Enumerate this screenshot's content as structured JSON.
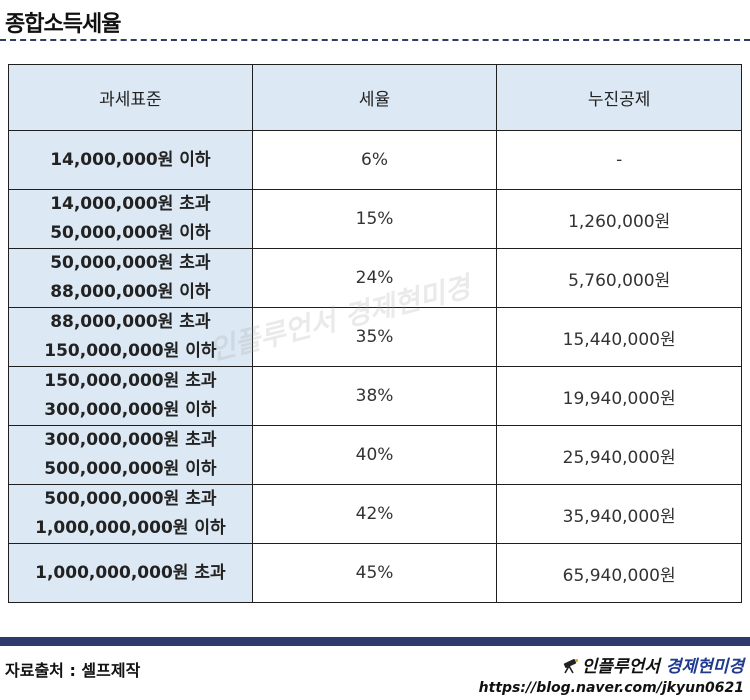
{
  "title": "종합소득세율",
  "table": {
    "headers": [
      "과세표준",
      "세율",
      "누진공제"
    ],
    "rows": [
      {
        "bracket_line1": "14,000,000원 이하",
        "bracket_line2": "",
        "rate": "6%",
        "deduction": "-"
      },
      {
        "bracket_line1": "14,000,000원 초과",
        "bracket_line2": "50,000,000원 이하",
        "rate": "15%",
        "deduction": "1,260,000원"
      },
      {
        "bracket_line1": "50,000,000원 초과",
        "bracket_line2": "88,000,000원 이하",
        "rate": "24%",
        "deduction": "5,760,000원"
      },
      {
        "bracket_line1": "88,000,000원 초과",
        "bracket_line2": "150,000,000원 이하",
        "rate": "35%",
        "deduction": "15,440,000원"
      },
      {
        "bracket_line1": "150,000,000원 초과",
        "bracket_line2": "300,000,000원 이하",
        "rate": "38%",
        "deduction": "19,940,000원"
      },
      {
        "bracket_line1": "300,000,000원 초과",
        "bracket_line2": "500,000,000원 이하",
        "rate": "40%",
        "deduction": "25,940,000원"
      },
      {
        "bracket_line1": "500,000,000원 초과",
        "bracket_line2": "1,000,000,000원 이하",
        "rate": "42%",
        "deduction": "35,940,000원"
      },
      {
        "bracket_line1": "1,000,000,000원 초과",
        "bracket_line2": "",
        "rate": "45%",
        "deduction": "65,940,000원"
      }
    ]
  },
  "watermark": "인플루언서 경제현미경",
  "footer": {
    "source": "자료출처 : 셀프제작",
    "brand_prefix": "인플루언서",
    "brand_name": "경제현미경",
    "url": "https://blog.naver.com/jkyun0621",
    "icon": "telescope-icon"
  },
  "colors": {
    "header_bg": "#dce8f3",
    "footer_bar": "#2e3a6b",
    "brand_accent": "#1f3a8f"
  }
}
